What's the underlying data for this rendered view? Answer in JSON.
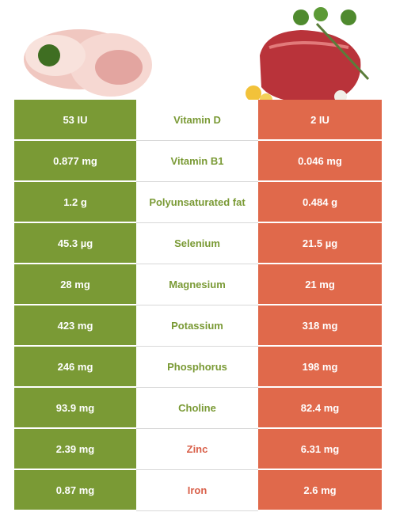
{
  "table": {
    "rows": [
      {
        "pork": "53 IU",
        "nutrient": "Vitamin D",
        "beef": "2 IU",
        "color": "#7a9a35"
      },
      {
        "pork": "0.877 mg",
        "nutrient": "Vitamin B1",
        "beef": "0.046 mg",
        "color": "#7a9a35"
      },
      {
        "pork": "1.2 g",
        "nutrient": "Polyunsaturated fat",
        "beef": "0.484 g",
        "color": "#7a9a35"
      },
      {
        "pork": "45.3 µg",
        "nutrient": "Selenium",
        "beef": "21.5 µg",
        "color": "#7a9a35"
      },
      {
        "pork": "28 mg",
        "nutrient": "Magnesium",
        "beef": "21 mg",
        "color": "#7a9a35"
      },
      {
        "pork": "423 mg",
        "nutrient": "Potassium",
        "beef": "318 mg",
        "color": "#7a9a35"
      },
      {
        "pork": "246 mg",
        "nutrient": "Phosphorus",
        "beef": "198 mg",
        "color": "#7a9a35"
      },
      {
        "pork": "93.9 mg",
        "nutrient": "Choline",
        "beef": "82.4 mg",
        "color": "#7a9a35"
      },
      {
        "pork": "2.39 mg",
        "nutrient": "Zinc",
        "beef": "6.31 mg",
        "color": "#d9604a"
      },
      {
        "pork": "0.87 mg",
        "nutrient": "Iron",
        "beef": "2.6 mg",
        "color": "#d9604a"
      }
    ]
  }
}
